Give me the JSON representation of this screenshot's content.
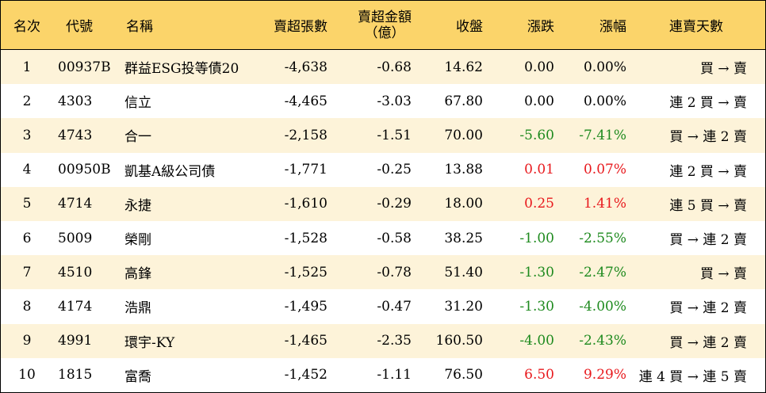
{
  "header": {
    "rank": "名次",
    "code": "代號",
    "name": "名稱",
    "volume": "賣超張數",
    "amount_line1": "賣超金額",
    "amount_line2": "（億）",
    "close": "收盤",
    "change": "漲跌",
    "pct": "漲幅",
    "days": "連賣天數"
  },
  "rows": [
    {
      "rank": "1",
      "code": "00937B",
      "name": "群益ESG投等債20",
      "volume": "-4,638",
      "amount": "-0.68",
      "close": "14.62",
      "change": "0.00",
      "pct": "0.00%",
      "trend": "flat",
      "days": "買 → 賣"
    },
    {
      "rank": "2",
      "code": "4303",
      "name": "信立",
      "volume": "-4,465",
      "amount": "-3.03",
      "close": "67.80",
      "change": "0.00",
      "pct": "0.00%",
      "trend": "flat",
      "days": "連 2 買 → 賣"
    },
    {
      "rank": "3",
      "code": "4743",
      "name": "合一",
      "volume": "-2,158",
      "amount": "-1.51",
      "close": "70.00",
      "change": "-5.60",
      "pct": "-7.41%",
      "trend": "down",
      "days": "買 → 連 2 賣"
    },
    {
      "rank": "4",
      "code": "00950B",
      "name": "凱基A級公司債",
      "volume": "-1,771",
      "amount": "-0.25",
      "close": "13.88",
      "change": "0.01",
      "pct": "0.07%",
      "trend": "up",
      "days": "連 2 買 → 賣"
    },
    {
      "rank": "5",
      "code": "4714",
      "name": "永捷",
      "volume": "-1,610",
      "amount": "-0.29",
      "close": "18.00",
      "change": "0.25",
      "pct": "1.41%",
      "trend": "up",
      "days": "連 5 買 → 賣"
    },
    {
      "rank": "6",
      "code": "5009",
      "name": "榮剛",
      "volume": "-1,528",
      "amount": "-0.58",
      "close": "38.25",
      "change": "-1.00",
      "pct": "-2.55%",
      "trend": "down",
      "days": "買 → 連 2 賣"
    },
    {
      "rank": "7",
      "code": "4510",
      "name": "高鋒",
      "volume": "-1,525",
      "amount": "-0.78",
      "close": "51.40",
      "change": "-1.30",
      "pct": "-2.47%",
      "trend": "down",
      "days": "買 → 賣"
    },
    {
      "rank": "8",
      "code": "4174",
      "name": "浩鼎",
      "volume": "-1,495",
      "amount": "-0.47",
      "close": "31.20",
      "change": "-1.30",
      "pct": "-4.00%",
      "trend": "down",
      "days": "買 → 連 2 賣"
    },
    {
      "rank": "9",
      "code": "4991",
      "name": "環宇-KY",
      "volume": "-1,465",
      "amount": "-2.35",
      "close": "160.50",
      "change": "-4.00",
      "pct": "-2.43%",
      "trend": "down",
      "days": "買 → 連 2 賣"
    },
    {
      "rank": "10",
      "code": "1815",
      "name": "富喬",
      "volume": "-1,452",
      "amount": "-1.11",
      "close": "76.50",
      "change": "6.50",
      "pct": "9.29%",
      "trend": "up",
      "days": "連 4 買 → 連 5 賣"
    }
  ],
  "colors": {
    "header_bg": "#fbd46a",
    "odd_row_bg": "#fdf3d9",
    "up": "#e8191d",
    "down": "#1e8a1e"
  }
}
